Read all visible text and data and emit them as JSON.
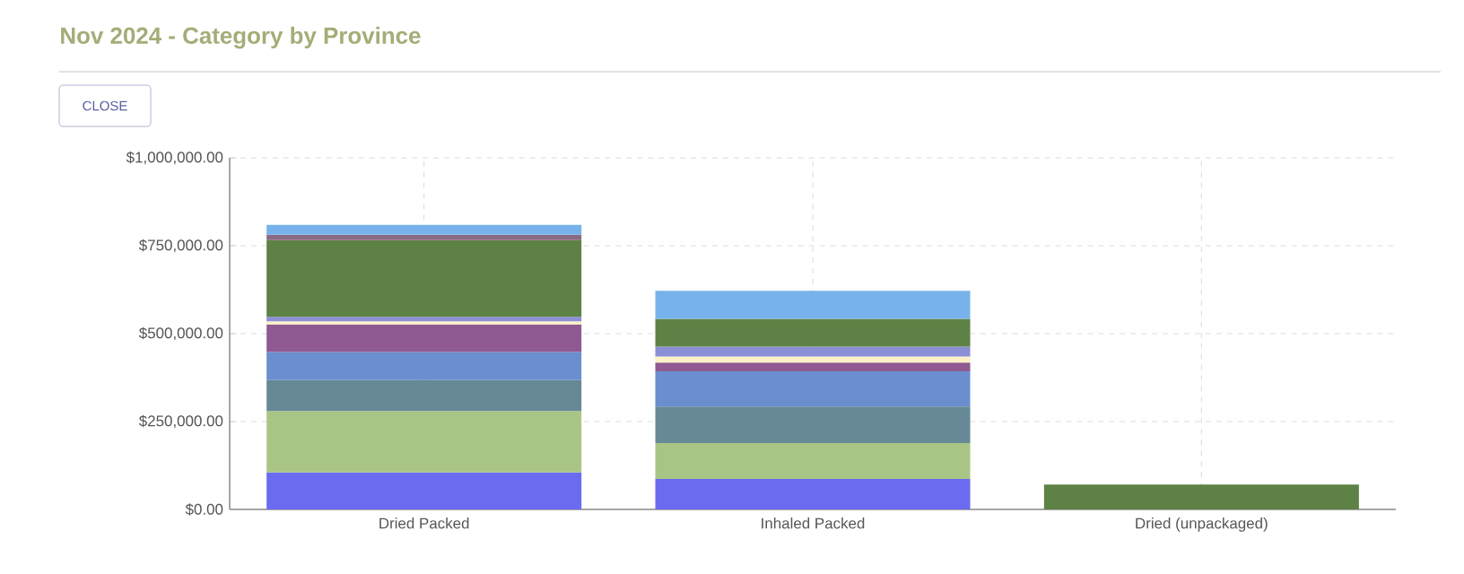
{
  "chart_data": {
    "type": "bar",
    "title": "Nov 2024 - Category by Province",
    "annotations": [
      "CLOSE"
    ],
    "categories": [
      "Dried Packed",
      "Inhaled Packed",
      "Dried (unpackaged)"
    ],
    "stacked": true,
    "grid": true,
    "ylim": [
      0,
      1000000
    ],
    "yticks": [
      {
        "value": 0,
        "label": "$0.00"
      },
      {
        "value": 250000,
        "label": "$250,000.00"
      },
      {
        "value": 500000,
        "label": "$500,000.00"
      },
      {
        "value": 750000,
        "label": "$750,000.00"
      },
      {
        "value": 1000000,
        "label": "$1,000,000.00"
      }
    ],
    "series": [
      {
        "color": "#6b6bf0",
        "values": [
          105000,
          87000,
          null
        ]
      },
      {
        "color": "#a9c585",
        "values": [
          175000,
          102000,
          null
        ]
      },
      {
        "color": "#678997",
        "values": [
          88000,
          104000,
          null
        ]
      },
      {
        "color": "#6b8ecf",
        "values": [
          80000,
          100000,
          null
        ]
      },
      {
        "color": "#8e5a91",
        "values": [
          78000,
          25000,
          null
        ]
      },
      {
        "color": "#fdf1c8",
        "values": [
          9000,
          17000,
          null
        ]
      },
      {
        "color": "#8b8fd6",
        "values": [
          13000,
          28000,
          null
        ]
      },
      {
        "color": "#5e8245",
        "values": [
          218000,
          79000,
          71000
        ]
      },
      {
        "color": "#8a6a82",
        "values": [
          15000,
          null,
          null
        ]
      },
      {
        "color": "#77b3ea",
        "values": [
          28000,
          80000,
          null
        ]
      }
    ]
  }
}
